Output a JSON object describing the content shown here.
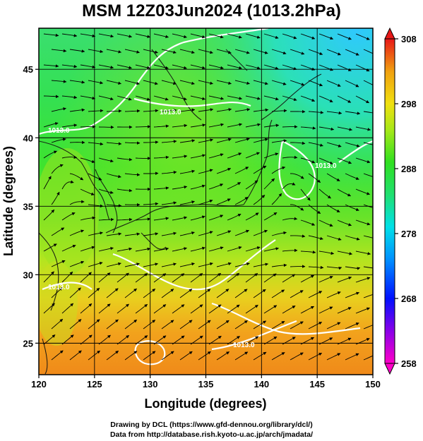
{
  "title": "MSM 12Z03Jun2024 (1013.2hPa)",
  "axes": {
    "xlabel": "Longitude (degrees)",
    "ylabel": "Latitude  (degrees)",
    "xticks": [
      "120",
      "125",
      "130",
      "135",
      "140",
      "145",
      "150"
    ],
    "yticks": [
      "25",
      "30",
      "35",
      "40",
      "45"
    ]
  },
  "colorbar": {
    "ticks": [
      "308",
      "298",
      "288",
      "278",
      "268",
      "258"
    ],
    "min": 258,
    "max": 308
  },
  "isobars": [
    "1013.0",
    "1013.0",
    "1013.0",
    "1013.0",
    "1013.0"
  ],
  "credits": {
    "line1": "Drawing by DCL (https://www.gfd-dennou.org/library/dcl/)",
    "line2": "Data from http://database.rish.kyoto-u.ac.jp/arch/jmadata/"
  },
  "colors": {
    "field_blue": "#2fd0ff",
    "field_cyan": "#28e6c8",
    "field_green": "#3ee32e",
    "field_yellowgreen": "#a6e81e",
    "field_yellow": "#e6d81c",
    "field_orange": "#f08a1a",
    "isobar": "#ffffff",
    "streamline": "#000000"
  }
}
